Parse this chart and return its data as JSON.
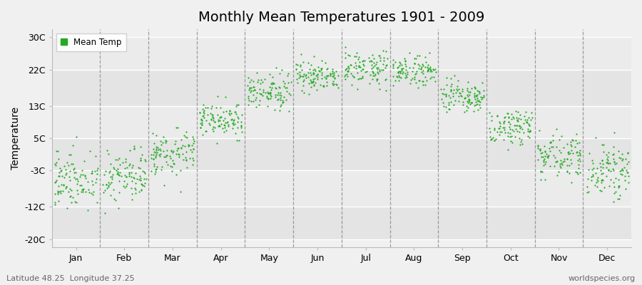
{
  "title": "Monthly Mean Temperatures 1901 - 2009",
  "ylabel": "Temperature",
  "dot_color": "#22aa22",
  "dot_size": 2.5,
  "background_color": "#f0f0f0",
  "plot_bg_color": "#f0f0f0",
  "yticks": [
    -20,
    -12,
    -3,
    5,
    13,
    22,
    30
  ],
  "ytick_labels": [
    "-20C",
    "-12C",
    "-3C",
    "5C",
    "13C",
    "22C",
    "30C"
  ],
  "ylim": [
    -22,
    32
  ],
  "month_names": [
    "Jan",
    "Feb",
    "Mar",
    "Apr",
    "May",
    "Jun",
    "Jul",
    "Aug",
    "Sep",
    "Oct",
    "Nov",
    "Dec"
  ],
  "legend_label": "Mean Temp",
  "bottom_left_text": "Latitude 48.25  Longitude 37.25",
  "bottom_right_text": "worldspecies.org",
  "title_fontsize": 14,
  "axis_fontsize": 10,
  "tick_fontsize": 9,
  "monthly_means": [
    -5.0,
    -4.5,
    1.5,
    9.5,
    16.5,
    20.5,
    22.5,
    21.5,
    15.0,
    8.0,
    1.0,
    -3.0
  ],
  "monthly_stds": [
    3.8,
    3.5,
    2.8,
    2.2,
    2.0,
    2.0,
    2.0,
    2.0,
    2.0,
    2.2,
    2.5,
    3.2
  ]
}
